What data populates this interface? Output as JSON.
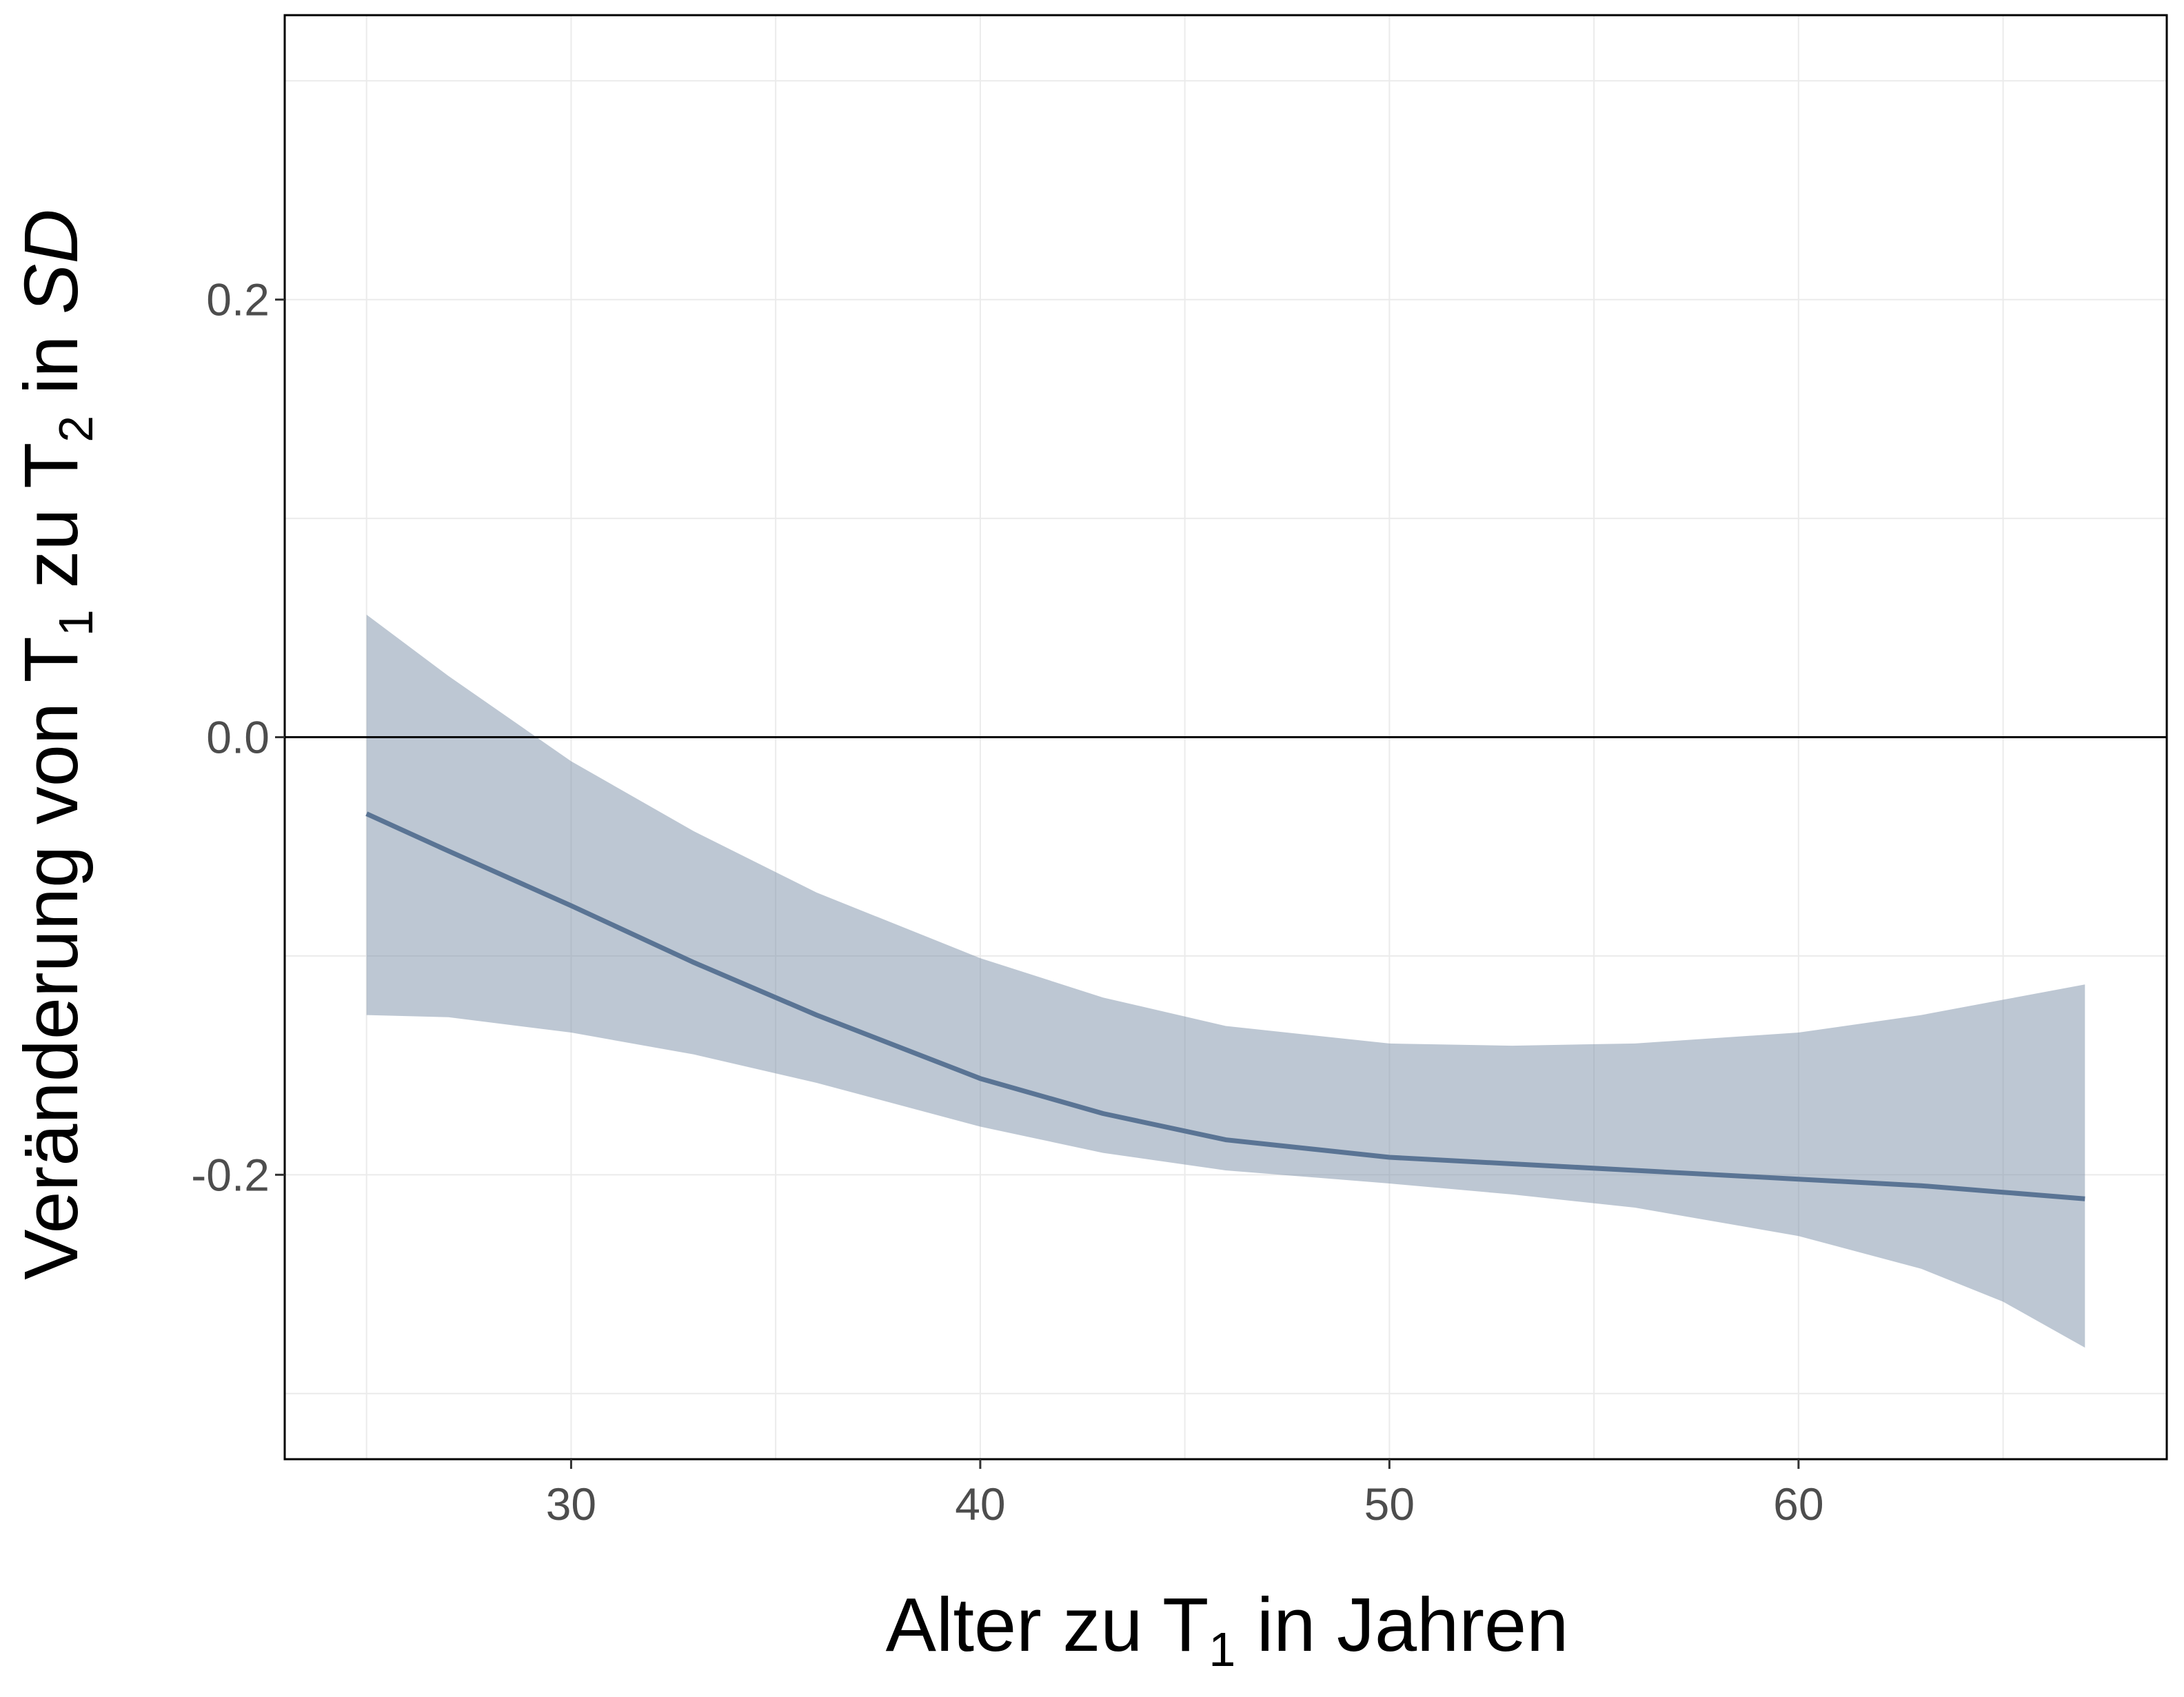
{
  "chart_data": {
    "type": "line",
    "title": "",
    "xlabel": {
      "main": "Alter zu T",
      "sub": "1",
      "rest": " in Jahren"
    },
    "ylabel": {
      "p1": "Veränderung von T",
      "s1": "1",
      "p2": " zu T",
      "s2": "2",
      "p3": " in ",
      "italic": "SD"
    },
    "xlim": [
      23,
      69
    ],
    "ylim": [
      -0.33,
      0.33
    ],
    "x_ticks": [
      30,
      40,
      50,
      60
    ],
    "y_ticks": [
      -0.2,
      0.0,
      0.2
    ],
    "x_tick_labels": [
      "30",
      "40",
      "50",
      "60"
    ],
    "y_tick_labels": [
      "-0.2",
      "0.0",
      "0.2"
    ],
    "reference_line_y": 0.0,
    "grid": true,
    "series": [
      {
        "x": [
          25,
          27,
          30,
          33,
          36,
          40,
          43,
          46,
          50,
          53,
          56,
          60,
          63,
          65,
          67
        ],
        "y": [
          -0.035,
          -0.052,
          -0.077,
          -0.103,
          -0.127,
          -0.156,
          -0.172,
          -0.184,
          -0.192,
          -0.195,
          -0.198,
          -0.202,
          -0.205,
          -0.208,
          -0.211
        ],
        "lower": [
          -0.127,
          -0.128,
          -0.135,
          -0.145,
          -0.158,
          -0.178,
          -0.19,
          -0.198,
          -0.204,
          -0.209,
          -0.215,
          -0.228,
          -0.243,
          -0.258,
          -0.279
        ],
        "upper": [
          0.056,
          0.028,
          -0.011,
          -0.043,
          -0.071,
          -0.101,
          -0.119,
          -0.132,
          -0.14,
          -0.141,
          -0.14,
          -0.135,
          -0.127,
          -0.12,
          -0.113
        ]
      }
    ],
    "colors": {
      "line": "#5a7494",
      "band": "#8093aa",
      "frame": "#000000",
      "grid": "#ebebeb"
    }
  }
}
